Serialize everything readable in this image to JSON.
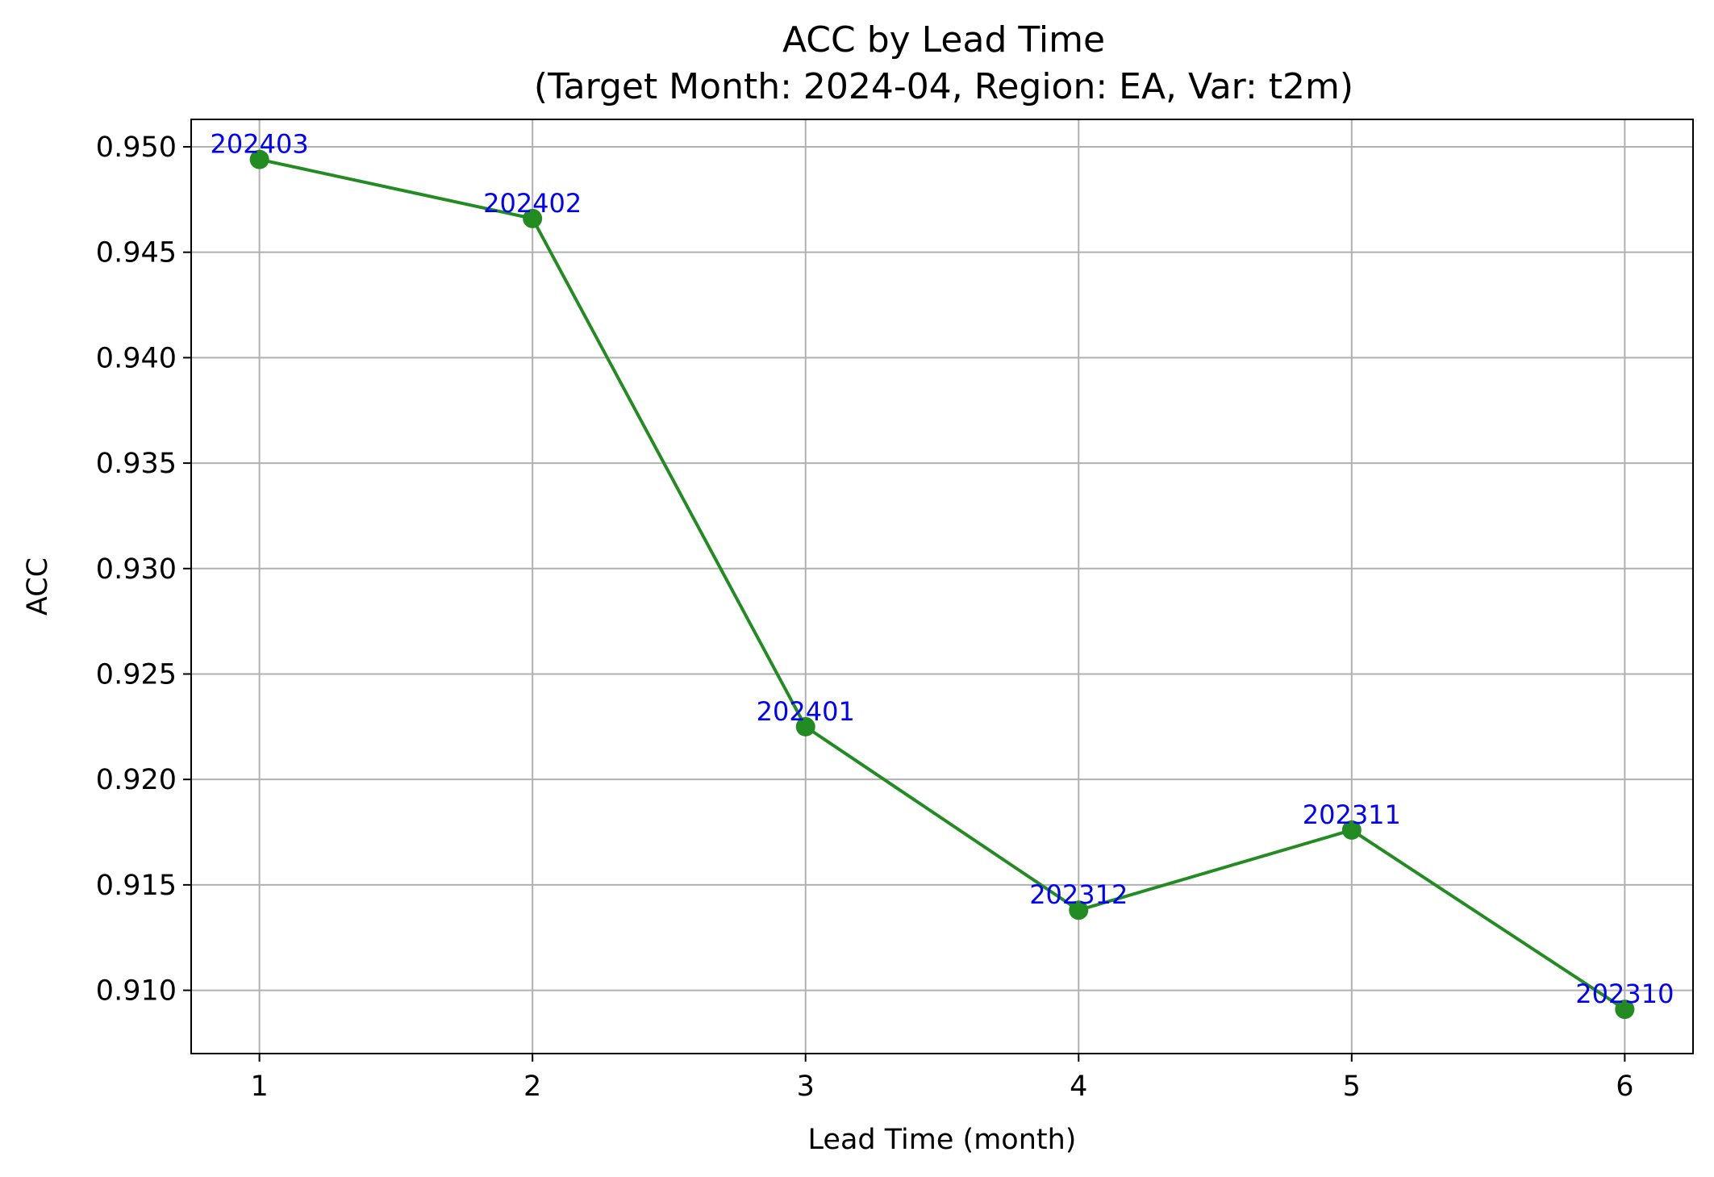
{
  "chart_data": {
    "type": "line",
    "title": "ACC by Lead Time",
    "subtitle": "(Target Month: 2024-04, Region: EA, Var: t2m)",
    "xlabel": "Lead Time (month)",
    "ylabel": "ACC",
    "x": [
      1,
      2,
      3,
      4,
      5,
      6
    ],
    "xticks": [
      "1",
      "2",
      "3",
      "4",
      "5",
      "6"
    ],
    "yticks": [
      "0.910",
      "0.915",
      "0.920",
      "0.925",
      "0.930",
      "0.935",
      "0.940",
      "0.945",
      "0.950"
    ],
    "xlim": [
      0.75,
      6.25
    ],
    "ylim": [
      0.907,
      0.9513
    ],
    "grid": true,
    "series": [
      {
        "color": "#228b22",
        "marker": "circle",
        "values": [
          0.9494,
          0.9466,
          0.9225,
          0.9138,
          0.9176,
          0.9091
        ],
        "point_labels": [
          "202403",
          "202402",
          "202401",
          "202312",
          "202311",
          "202310"
        ]
      }
    ],
    "label_color": "#0000ff",
    "grid_color": "#b0b0b0"
  }
}
